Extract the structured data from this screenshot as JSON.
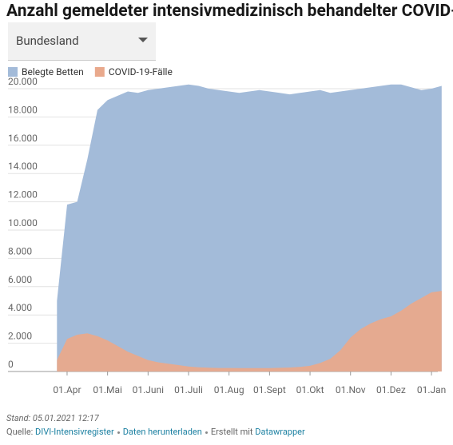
{
  "chart_data": {
    "type": "area",
    "title": "Anzahl gemeldeter intensivmedizinisch behandelter COVID-",
    "dropdown": "Bundesland",
    "x": [
      "22.03",
      "01.04",
      "08.04",
      "15.04",
      "22.04",
      "01.05",
      "08.05",
      "15.05",
      "22.05",
      "01.06",
      "08.06",
      "15.06",
      "22.06",
      "01.07",
      "08.07",
      "15.07",
      "22.07",
      "01.08",
      "08.08",
      "15.08",
      "22.08",
      "01.09",
      "08.09",
      "15.09",
      "22.09",
      "01.10",
      "08.10",
      "15.10",
      "22.10",
      "01.11",
      "08.11",
      "15.11",
      "22.11",
      "01.12",
      "08.12",
      "15.12",
      "22.12",
      "01.01",
      "05.01"
    ],
    "series": [
      {
        "name": "Belegte Betten",
        "color": "#a3bbd9",
        "values": [
          5000,
          11800,
          12000,
          15000,
          18500,
          19200,
          19500,
          19800,
          19700,
          19900,
          20000,
          20100,
          20200,
          20300,
          20200,
          20000,
          19900,
          19800,
          19700,
          19800,
          19900,
          19800,
          19700,
          19600,
          19700,
          19800,
          19900,
          19700,
          19800,
          19900,
          20000,
          20100,
          20200,
          20300,
          20300,
          20100,
          19900,
          20000,
          20200
        ]
      },
      {
        "name": "COVID-19-Fälle",
        "color": "#e9a98c",
        "values": [
          800,
          2300,
          2600,
          2700,
          2500,
          2200,
          1800,
          1400,
          1100,
          800,
          650,
          550,
          450,
          350,
          300,
          270,
          250,
          250,
          240,
          240,
          240,
          240,
          260,
          280,
          330,
          400,
          600,
          900,
          1500,
          2400,
          3000,
          3400,
          3700,
          3900,
          4300,
          4800,
          5200,
          5600,
          5700
        ]
      }
    ],
    "ylim": [
      0,
      20000
    ],
    "yticks": [
      {
        "value": 0,
        "label": "0"
      },
      {
        "value": 2000,
        "label": "2.000"
      },
      {
        "value": 4000,
        "label": "4.000"
      },
      {
        "value": 6000,
        "label": "6.000"
      },
      {
        "value": 8000,
        "label": "8.000"
      },
      {
        "value": 10000,
        "label": "10.000"
      },
      {
        "value": 12000,
        "label": "12.000"
      },
      {
        "value": 14000,
        "label": "14.000"
      },
      {
        "value": 16000,
        "label": "16.000"
      },
      {
        "value": 18000,
        "label": "18.000"
      },
      {
        "value": 20000,
        "label": "20.000"
      }
    ],
    "xticks": [
      {
        "value": "01.04",
        "label": "01.Apr"
      },
      {
        "value": "01.05",
        "label": "01.Mai"
      },
      {
        "value": "01.06",
        "label": "01.Juni"
      },
      {
        "value": "01.07",
        "label": "01.Juli"
      },
      {
        "value": "01.08",
        "label": "01.Aug"
      },
      {
        "value": "01.09",
        "label": "01.Sept"
      },
      {
        "value": "01.10",
        "label": "01.Okt"
      },
      {
        "value": "01.11",
        "label": "01.Nov"
      },
      {
        "value": "01.12",
        "label": "01.Dez"
      },
      {
        "value": "01.01",
        "label": "01.Jan"
      }
    ],
    "grid": true,
    "footer": {
      "stand": "Stand: 05.01.2021 12:17",
      "source_label": "Quelle:",
      "source": "DIVI-Intensivregister",
      "download": "Daten herunterladen",
      "created": "Erstellt mit",
      "tool": "Datawrapper"
    }
  }
}
